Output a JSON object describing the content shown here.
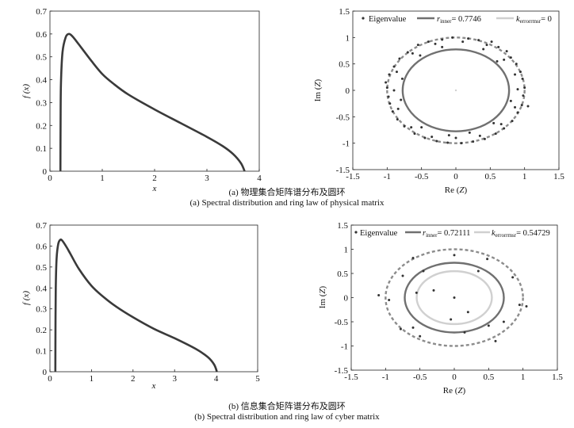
{
  "captions": {
    "a_cn": "(a) 物理集合矩阵谱分布及圆环",
    "a_en": "(a) Spectral distribution and ring law of physical matrix",
    "b_cn": "(b) 信息集合矩阵谱分布及圆环",
    "b_en": "(b) Spectral distribution and ring law of cyber matrix"
  },
  "chart_data": [
    {
      "id": "a-left",
      "type": "line",
      "xlabel": "x",
      "ylabel": "f (x)",
      "xlim": [
        0,
        4
      ],
      "ylim": [
        0,
        0.7
      ],
      "xticks": [
        0,
        1,
        2,
        3,
        4
      ],
      "yticks": [
        0,
        0.1,
        0.2,
        0.3,
        0.4,
        0.5,
        0.6,
        0.7
      ],
      "line_color": "#3a3a3a",
      "series": [
        {
          "x": [
            0.2,
            0.203,
            0.21,
            0.24,
            0.3,
            0.36,
            0.42,
            0.5,
            0.6,
            0.8,
            1.0,
            1.2,
            1.5,
            2.0,
            2.5,
            3.0,
            3.3,
            3.5,
            3.65,
            3.72
          ],
          "y": [
            0,
            0.2,
            0.38,
            0.52,
            0.585,
            0.6,
            0.592,
            0.57,
            0.54,
            0.48,
            0.425,
            0.385,
            0.335,
            0.27,
            0.21,
            0.15,
            0.11,
            0.075,
            0.035,
            0
          ]
        }
      ]
    },
    {
      "id": "a-right",
      "type": "scatter",
      "xlabel": "Re (Z)",
      "ylabel": "Im (Z)",
      "xlim": [
        -1.5,
        1.5
      ],
      "ylim": [
        -1.5,
        1.5
      ],
      "xticks": [
        -1.5,
        -1,
        -0.5,
        0,
        0.5,
        1,
        1.5
      ],
      "yticks": [
        -1.5,
        -1,
        -0.5,
        0,
        0.5,
        1,
        1.5
      ],
      "legend": {
        "eigen": "Eigenvalue",
        "inner": "0.7746",
        "error": "0"
      },
      "colors": {
        "points": "#333333",
        "inner": "#707070",
        "outer": "#8c8c8c",
        "error": "#d0d0d0"
      },
      "circles": {
        "inner_r": 0.7746,
        "outer_r": 1.0,
        "error_r": 0
      },
      "points": [
        [
          0.74,
          0.74
        ],
        [
          0.52,
          0.92
        ],
        [
          0.18,
          0.98
        ],
        [
          -0.2,
          0.96
        ],
        [
          -0.55,
          0.86
        ],
        [
          -0.82,
          0.6
        ],
        [
          -0.97,
          0.3
        ],
        [
          -1.0,
          0.05
        ],
        [
          -0.96,
          -0.25
        ],
        [
          -0.85,
          -0.55
        ],
        [
          -0.6,
          -0.82
        ],
        [
          -0.28,
          -0.96
        ],
        [
          0.08,
          -1.0
        ],
        [
          0.42,
          -0.92
        ],
        [
          0.7,
          -0.72
        ],
        [
          0.9,
          -0.42
        ],
        [
          0.98,
          -0.1
        ],
        [
          0.97,
          0.22
        ],
        [
          0.88,
          0.5
        ],
        [
          0.62,
          0.82
        ],
        [
          0.33,
          0.95
        ],
        [
          -0.05,
          1.0
        ],
        [
          -0.4,
          0.92
        ],
        [
          -0.7,
          0.72
        ],
        [
          -0.9,
          0.45
        ],
        [
          -1.02,
          0.15
        ],
        [
          -0.98,
          -0.12
        ],
        [
          -0.92,
          -0.4
        ],
        [
          -0.75,
          -0.68
        ],
        [
          -0.45,
          -0.9
        ],
        [
          -0.12,
          -0.99
        ],
        [
          0.25,
          -0.97
        ],
        [
          0.58,
          -0.82
        ],
        [
          0.82,
          -0.58
        ],
        [
          0.96,
          -0.28
        ],
        [
          1.0,
          0.05
        ],
        [
          0.94,
          0.35
        ],
        [
          0.8,
          0.62
        ],
        [
          0.45,
          0.86
        ],
        [
          0.1,
          0.92
        ],
        [
          -0.3,
          0.88
        ],
        [
          -0.63,
          0.7
        ],
        [
          -0.86,
          0.35
        ],
        [
          -0.9,
          0.0
        ],
        [
          -0.84,
          -0.35
        ],
        [
          -0.65,
          -0.7
        ],
        [
          -0.35,
          -0.88
        ],
        [
          0.0,
          -0.9
        ],
        [
          0.35,
          -0.86
        ],
        [
          0.66,
          -0.64
        ],
        [
          0.86,
          -0.32
        ],
        [
          0.9,
          0.02
        ],
        [
          0.86,
          0.3
        ],
        [
          0.7,
          0.58
        ],
        [
          0.4,
          0.78
        ],
        [
          -0.2,
          0.82
        ],
        [
          -0.52,
          0.66
        ],
        [
          -0.78,
          0.22
        ],
        [
          -0.8,
          -0.18
        ],
        [
          -0.5,
          -0.7
        ],
        [
          0.2,
          -0.8
        ],
        [
          0.55,
          -0.62
        ],
        [
          0.8,
          -0.2
        ],
        [
          0.6,
          0.55
        ],
        [
          -0.1,
          -0.85
        ],
        [
          1.05,
          -0.3
        ]
      ]
    },
    {
      "id": "b-left",
      "type": "line",
      "xlabel": "x",
      "ylabel": "f (x)",
      "xlim": [
        0,
        5
      ],
      "ylim": [
        0,
        0.7
      ],
      "xticks": [
        0,
        1,
        2,
        3,
        4,
        5
      ],
      "yticks": [
        0,
        0.1,
        0.2,
        0.3,
        0.4,
        0.5,
        0.6,
        0.7
      ],
      "line_color": "#3a3a3a",
      "series": [
        {
          "x": [
            0.13,
            0.133,
            0.14,
            0.16,
            0.2,
            0.25,
            0.3,
            0.4,
            0.5,
            0.7,
            1.0,
            1.3,
            1.6,
            2.0,
            2.5,
            3.0,
            3.5,
            3.8,
            3.95,
            4.02
          ],
          "y": [
            0,
            0.2,
            0.4,
            0.54,
            0.61,
            0.63,
            0.625,
            0.595,
            0.56,
            0.49,
            0.41,
            0.355,
            0.31,
            0.26,
            0.205,
            0.16,
            0.11,
            0.07,
            0.035,
            0
          ]
        }
      ]
    },
    {
      "id": "b-right",
      "type": "scatter",
      "xlabel": "Re (Z)",
      "ylabel": "Im (Z)",
      "xlim": [
        -1.5,
        1.5
      ],
      "ylim": [
        -1.5,
        1.5
      ],
      "xticks": [
        -1.5,
        -1,
        -0.5,
        0,
        0.5,
        1,
        1.5
      ],
      "yticks": [
        -1.5,
        -1,
        -0.5,
        0,
        0.5,
        1,
        1.5
      ],
      "legend": {
        "eigen": "Eigenvalue",
        "inner": "0.72111",
        "error": "0.54729"
      },
      "colors": {
        "points": "#333333",
        "inner": "#707070",
        "outer": "#8c8c8c",
        "error": "#d0d0d0"
      },
      "circles": {
        "inner_r": 0.72111,
        "outer_r": 1.0,
        "error_r": 0.54729
      },
      "points": [
        [
          0.0,
          0.88
        ],
        [
          -0.6,
          0.82
        ],
        [
          0.48,
          0.8
        ],
        [
          -0.75,
          0.45
        ],
        [
          0.85,
          0.42
        ],
        [
          -0.3,
          0.15
        ],
        [
          -0.55,
          0.1
        ],
        [
          -1.1,
          0.05
        ],
        [
          0.0,
          0.0
        ],
        [
          0.95,
          -0.15
        ],
        [
          1.05,
          -0.18
        ],
        [
          -0.95,
          -0.05
        ],
        [
          -0.6,
          -0.62
        ],
        [
          0.5,
          -0.58
        ],
        [
          -0.78,
          -0.65
        ],
        [
          0.15,
          -0.72
        ],
        [
          -0.5,
          -0.8
        ],
        [
          0.72,
          -0.5
        ],
        [
          0.6,
          -0.9
        ],
        [
          0.35,
          0.55
        ],
        [
          -0.45,
          0.55
        ],
        [
          0.2,
          -0.3
        ],
        [
          -0.05,
          -0.45
        ]
      ]
    }
  ]
}
